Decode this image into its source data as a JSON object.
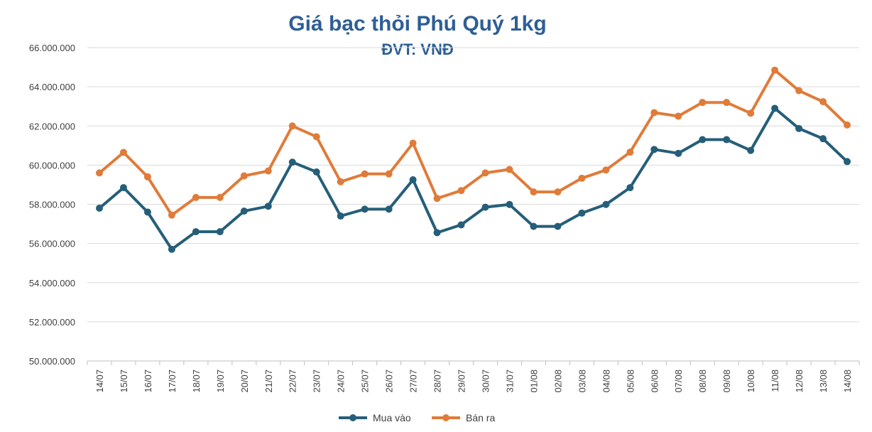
{
  "chart_data": {
    "type": "line",
    "title": "Giá bạc thỏi Phú Quý 1kg",
    "subtitle": "ĐVT: VNĐ",
    "xlabel": "",
    "ylabel": "",
    "ylim": [
      50000000,
      66000000
    ],
    "yticks": [
      50000000,
      52000000,
      54000000,
      56000000,
      58000000,
      60000000,
      62000000,
      64000000,
      66000000
    ],
    "ytick_labels": [
      "50.000.000",
      "52.000.000",
      "54.000.000",
      "56.000.000",
      "58.000.000",
      "60.000.000",
      "62.000.000",
      "64.000.000",
      "66.000.000"
    ],
    "grid": true,
    "legend": "bottom",
    "categories": [
      "14/07",
      "15/07",
      "16/07",
      "17/07",
      "18/07",
      "19/07",
      "20/07",
      "21/07",
      "22/07",
      "23/07",
      "24/07",
      "25/07",
      "26/07",
      "27/07",
      "28/07",
      "29/07",
      "30/07",
      "31/07",
      "01/08",
      "02/08",
      "03/08",
      "04/08",
      "05/08",
      "06/08",
      "07/08",
      "08/08",
      "09/08",
      "10/08",
      "11/08",
      "12/08",
      "13/08",
      "14/08"
    ],
    "series": [
      {
        "name": "Mua vào",
        "color": "#255E79",
        "values": [
          57800000,
          58850000,
          57600000,
          55700000,
          56600000,
          56600000,
          57650000,
          57900000,
          60150000,
          59650000,
          57400000,
          57750000,
          57750000,
          59250000,
          56550000,
          56950000,
          57850000,
          57990000,
          56870000,
          56870000,
          57550000,
          57990000,
          58850000,
          60800000,
          60600000,
          61300000,
          61300000,
          60750000,
          62900000,
          61870000,
          61350000,
          60180000
        ]
      },
      {
        "name": "Bán ra",
        "color": "#E07B39",
        "values": [
          59600000,
          60650000,
          59400000,
          57450000,
          58350000,
          58350000,
          59450000,
          59700000,
          62000000,
          61450000,
          59150000,
          59550000,
          59550000,
          61120000,
          58300000,
          58700000,
          59600000,
          59780000,
          58630000,
          58630000,
          59330000,
          59750000,
          60660000,
          62680000,
          62500000,
          63200000,
          63200000,
          62650000,
          64850000,
          63800000,
          63240000,
          62050000
        ]
      }
    ]
  }
}
